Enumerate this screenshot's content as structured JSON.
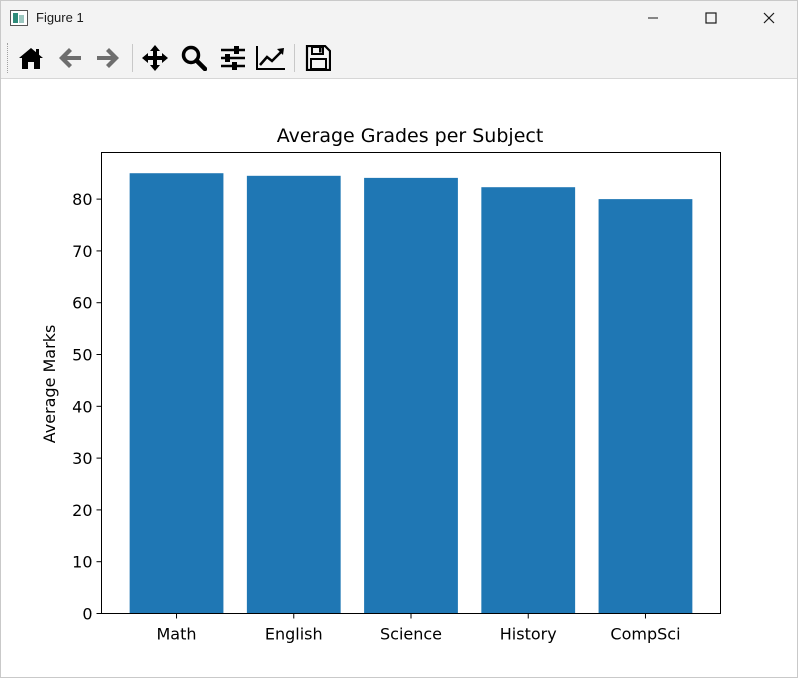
{
  "window": {
    "title": "Figure 1",
    "accent": "#1f77b4"
  },
  "toolbar": {
    "buttons": [
      {
        "icon": "home-icon",
        "tooltip": "Reset original view"
      },
      {
        "icon": "back-arrow-icon",
        "tooltip": "Back to previous view"
      },
      {
        "icon": "forward-arrow-icon",
        "tooltip": "Forward to next view"
      },
      {
        "icon": "pan-move-icon",
        "tooltip": "Pan axes"
      },
      {
        "icon": "zoom-magnifier-icon",
        "tooltip": "Zoom to rectangle"
      },
      {
        "icon": "configure-subplots-icon",
        "tooltip": "Configure subplots"
      },
      {
        "icon": "edit-axis-icon",
        "tooltip": "Edit axis"
      },
      {
        "icon": "save-floppy-icon",
        "tooltip": "Save the figure"
      }
    ]
  },
  "chart_data": {
    "type": "bar",
    "title": "Average Grades per Subject",
    "xlabel": "",
    "ylabel": "Average Marks",
    "categories": [
      "Math",
      "English",
      "Science",
      "History",
      "CompSci"
    ],
    "values": [
      85.0,
      84.5,
      84.1,
      82.3,
      80.0
    ],
    "ylim": [
      0,
      89
    ],
    "yticks": [
      0,
      10,
      20,
      30,
      40,
      50,
      60,
      70,
      80
    ],
    "bar_color": "#1f77b4",
    "grid": false,
    "legend": "none"
  }
}
